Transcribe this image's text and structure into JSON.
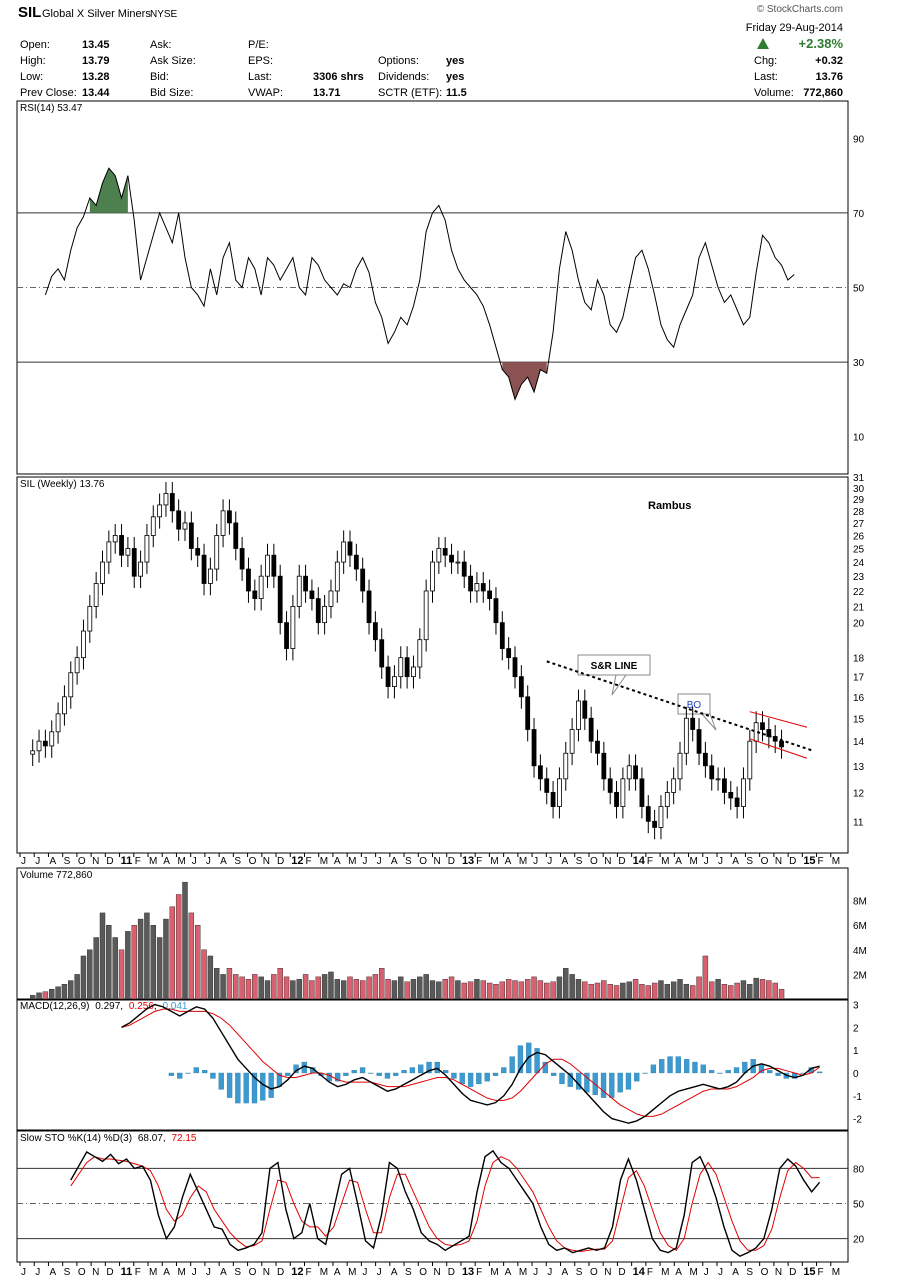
{
  "header": {
    "symbol": "SIL",
    "name": "Global X Silver Miners",
    "exchange": "NYSE",
    "watermark": "© StockCharts.com",
    "date": "Friday   29-Aug-2014",
    "change_pct": "+2.38%",
    "left_fields": [
      {
        "label": "Open:",
        "value": "13.45"
      },
      {
        "label": "High:",
        "value": "13.79"
      },
      {
        "label": "Low:",
        "value": "13.28"
      },
      {
        "label": "Prev Close:",
        "value": "13.44"
      }
    ],
    "mid_fields": [
      {
        "label": "Ask:",
        "value": ""
      },
      {
        "label": "Ask Size:",
        "value": ""
      },
      {
        "label": "Bid:",
        "value": ""
      },
      {
        "label": "Bid Size:",
        "value": ""
      }
    ],
    "mid2_fields": [
      {
        "label": "P/E:",
        "value": ""
      },
      {
        "label": "EPS:",
        "value": ""
      },
      {
        "label": "Last:",
        "value": "3306 shrs"
      },
      {
        "label": "VWAP:",
        "value": "13.71"
      }
    ],
    "right_fields": [
      {
        "label": "",
        "value": ""
      },
      {
        "label": "Options:",
        "value": "yes"
      },
      {
        "label": "Dividends:",
        "value": "yes"
      },
      {
        "label": "SCTR (ETF):",
        "value": "11.5"
      }
    ],
    "far_fields": [
      {
        "label": "Chg:",
        "value": "+0.32"
      },
      {
        "label": "Last:",
        "value": "13.76"
      },
      {
        "label": "Volume:",
        "value": "772,860"
      }
    ]
  },
  "colors": {
    "up": "#5a5a5a",
    "down": "#d9606e",
    "rsi_over": "#4e7f4e",
    "rsi_under": "#8a5252",
    "macd_hist": "#3b9ad0",
    "signal": "#e00000",
    "channel": "#e00000",
    "accent_green": "#2e7d32"
  },
  "x_axis": {
    "labels": [
      "J",
      "J",
      "A",
      "S",
      "O",
      "N",
      "D",
      "11",
      "F",
      "M",
      "A",
      "M",
      "J",
      "J",
      "A",
      "S",
      "O",
      "N",
      "D",
      "12",
      "F",
      "M",
      "A",
      "M",
      "J",
      "J",
      "A",
      "S",
      "O",
      "N",
      "D",
      "13",
      "F",
      "M",
      "A",
      "M",
      "J",
      "J",
      "A",
      "S",
      "O",
      "N",
      "D",
      "14",
      "F",
      "M",
      "A",
      "M",
      "J",
      "J",
      "A",
      "S",
      "O",
      "N",
      "D",
      "15",
      "F",
      "M"
    ]
  },
  "chart_data": [
    {
      "type": "line",
      "title": "RSI(14) 53.47",
      "x_unit": "weeks from Jun-2010",
      "ylim": [
        0,
        100
      ],
      "yticks": [
        10,
        30,
        50,
        70,
        90
      ],
      "reference_lines": [
        30,
        50,
        70
      ],
      "values": [
        48,
        53,
        55,
        52,
        60,
        66,
        69,
        74,
        72,
        78,
        82,
        80,
        74,
        80,
        68,
        52,
        58,
        64,
        70,
        66,
        62,
        70,
        58,
        50,
        48,
        45,
        55,
        48,
        58,
        62,
        52,
        50,
        58,
        55,
        48,
        58,
        56,
        52,
        55,
        58,
        50,
        48,
        58,
        56,
        52,
        50,
        48,
        51,
        50,
        55,
        58,
        54,
        46,
        42,
        35,
        38,
        42,
        40,
        45,
        52,
        65,
        70,
        72,
        68,
        60,
        55,
        52,
        50,
        48,
        45,
        40,
        34,
        28,
        26,
        20,
        24,
        26,
        22,
        28,
        27,
        38,
        55,
        65,
        60,
        52,
        46,
        44,
        52,
        48,
        40,
        38,
        42,
        50,
        58,
        60,
        55,
        48,
        40,
        36,
        34,
        40,
        44,
        48,
        58,
        62,
        56,
        50,
        46,
        48,
        44,
        40,
        42,
        54,
        64,
        62,
        58,
        56,
        52,
        53.47
      ]
    },
    {
      "type": "candlestick",
      "title": "SIL (Weekly) 13.76",
      "annotations": [
        "Rambus",
        "S&R LINE",
        "BO"
      ],
      "x_unit": "weeks from Jun-2010",
      "ylim": [
        10,
        31
      ],
      "log_scale": true,
      "yticks": [
        11,
        12,
        13,
        14,
        15,
        16,
        17,
        18,
        20,
        21,
        22,
        23,
        24,
        25,
        26,
        27,
        28,
        29,
        30,
        31
      ],
      "values": [
        13.6,
        14.0,
        13.8,
        14.4,
        15.2,
        16.0,
        17.2,
        18.0,
        19.5,
        21.0,
        22.5,
        24.0,
        25.5,
        26.0,
        24.5,
        25.0,
        23.0,
        24.0,
        26.0,
        27.5,
        28.5,
        29.5,
        28.0,
        26.5,
        27.0,
        25.0,
        24.5,
        22.5,
        23.5,
        26.0,
        28.0,
        27.0,
        25.0,
        23.5,
        22.0,
        21.5,
        23.0,
        24.5,
        23.0,
        20.0,
        18.5,
        21.0,
        23.0,
        22.0,
        21.5,
        20.0,
        21.0,
        22.0,
        24.0,
        25.5,
        24.5,
        23.5,
        22.0,
        20.0,
        19.0,
        17.5,
        16.5,
        17.0,
        18.0,
        17.0,
        17.5,
        19.0,
        22.0,
        24.0,
        25.0,
        24.5,
        24.0,
        24.0,
        23.0,
        22.0,
        22.5,
        22.0,
        21.5,
        20.0,
        18.5,
        18.0,
        17.0,
        16.0,
        14.5,
        13.0,
        12.5,
        12.0,
        11.5,
        12.5,
        13.5,
        14.5,
        15.8,
        15.0,
        14.0,
        13.5,
        12.5,
        12.0,
        11.5,
        12.5,
        13.0,
        12.5,
        11.5,
        11.0,
        10.8,
        11.5,
        12.0,
        12.5,
        13.5,
        15.0,
        14.5,
        13.5,
        13.0,
        12.5,
        12.5,
        12.0,
        11.8,
        11.5,
        12.5,
        14.0,
        14.8,
        14.5,
        14.2,
        14.0,
        13.76
      ],
      "sr_line": {
        "x": [
          83,
          125
        ],
        "y": [
          17.8,
          13.6
        ]
      },
      "channel_upper": {
        "x": [
          115,
          124
        ],
        "y": [
          15.3,
          14.6
        ]
      },
      "channel_lower": {
        "x": [
          115,
          124
        ],
        "y": [
          14.1,
          13.3
        ]
      }
    },
    {
      "type": "bar",
      "title": "Volume 772,860",
      "ylim": [
        0,
        10
      ],
      "yticks": [
        2,
        4,
        6,
        8
      ],
      "ytick_labels": [
        "2M",
        "4M",
        "6M",
        "8M"
      ],
      "values": [
        0.3,
        0.5,
        0.6,
        0.8,
        1.0,
        1.2,
        1.5,
        2.0,
        3.5,
        4.0,
        5.0,
        7.0,
        6.0,
        5.0,
        4.0,
        5.5,
        6.0,
        6.5,
        7.0,
        6.0,
        5.0,
        6.5,
        7.5,
        8.5,
        9.5,
        7.0,
        6.0,
        4.0,
        3.5,
        2.5,
        2.0,
        2.5,
        2.0,
        1.8,
        1.6,
        2.0,
        1.8,
        1.5,
        2.0,
        2.5,
        1.8,
        1.5,
        1.6,
        2.0,
        1.5,
        1.8,
        2.0,
        2.2,
        1.6,
        1.5,
        1.8,
        1.6,
        1.5,
        1.8,
        2.0,
        2.5,
        1.6,
        1.5,
        1.8,
        1.4,
        1.6,
        1.8,
        2.0,
        1.5,
        1.4,
        1.6,
        1.8,
        1.5,
        1.3,
        1.4,
        1.6,
        1.5,
        1.3,
        1.2,
        1.4,
        1.6,
        1.5,
        1.4,
        1.6,
        1.8,
        1.5,
        1.3,
        1.4,
        1.8,
        2.5,
        2.0,
        1.6,
        1.4,
        1.2,
        1.3,
        1.5,
        1.2,
        1.1,
        1.3,
        1.4,
        1.6,
        1.2,
        1.1,
        1.3,
        1.5,
        1.2,
        1.4,
        1.6,
        1.2,
        1.1,
        1.8,
        3.5,
        1.4,
        1.6,
        1.2,
        1.1,
        1.3,
        1.5,
        1.2,
        1.7,
        1.6,
        1.5,
        1.3,
        0.8
      ]
    },
    {
      "type": "line",
      "title": "MACD(12,26,9) 0.297, 0.256, 0.041",
      "legend": [
        "MACD(12,26,9)",
        "0.297",
        "0.256",
        "0.041"
      ],
      "ylim": [
        -2.5,
        3.2
      ],
      "yticks": [
        -2,
        -1,
        0,
        1,
        2,
        3
      ],
      "macd": [
        2.0,
        2.2,
        2.5,
        2.8,
        3.0,
        2.9,
        2.7,
        2.5,
        2.7,
        2.9,
        2.8,
        2.4,
        1.8,
        1.2,
        0.6,
        0.2,
        -0.2,
        -0.5,
        -0.7,
        -0.6,
        -0.3,
        0.1,
        0.3,
        0.2,
        -0.1,
        -0.4,
        -0.6,
        -0.5,
        -0.3,
        -0.2,
        -0.4,
        -0.6,
        -0.8,
        -0.7,
        -0.5,
        -0.3,
        -0.1,
        0.1,
        0.2,
        -0.1,
        -0.5,
        -0.9,
        -1.2,
        -1.3,
        -1.4,
        -1.3,
        -1.0,
        -0.5,
        0.2,
        0.7,
        0.9,
        0.8,
        0.5,
        0.2,
        -0.1,
        -0.5,
        -0.9,
        -1.3,
        -1.7,
        -2.0,
        -2.1,
        -2.2,
        -2.1,
        -1.9,
        -1.6,
        -1.3,
        -1.0,
        -0.8,
        -0.7,
        -0.6,
        -0.5,
        -0.6,
        -0.7,
        -0.6,
        -0.4,
        0.0,
        0.3,
        0.4,
        0.3,
        0.1,
        -0.1,
        -0.2,
        -0.1,
        0.2,
        0.297
      ],
      "signal": [
        2.0,
        2.1,
        2.3,
        2.5,
        2.7,
        2.8,
        2.8,
        2.7,
        2.7,
        2.7,
        2.7,
        2.6,
        2.4,
        2.1,
        1.7,
        1.3,
        0.9,
        0.5,
        0.2,
        -0.1,
        -0.2,
        -0.2,
        -0.1,
        0.0,
        0.0,
        -0.1,
        -0.3,
        -0.4,
        -0.4,
        -0.4,
        -0.4,
        -0.5,
        -0.6,
        -0.6,
        -0.6,
        -0.5,
        -0.4,
        -0.3,
        -0.2,
        -0.2,
        -0.3,
        -0.5,
        -0.7,
        -0.9,
        -1.1,
        -1.2,
        -1.2,
        -1.1,
        -0.8,
        -0.4,
        0.0,
        0.4,
        0.6,
        0.6,
        0.4,
        0.1,
        -0.2,
        -0.5,
        -0.8,
        -1.1,
        -1.4,
        -1.6,
        -1.8,
        -1.9,
        -1.9,
        -1.8,
        -1.6,
        -1.4,
        -1.2,
        -1.0,
        -0.8,
        -0.7,
        -0.7,
        -0.7,
        -0.6,
        -0.4,
        -0.2,
        0.1,
        0.2,
        0.2,
        0.1,
        0.0,
        -0.1,
        0.0,
        0.256
      ]
    },
    {
      "type": "line",
      "title": "Slow STO %K(14) %D(3) 68.07, 72.15",
      "legend": [
        "Slow STO %K(14) %D(3)",
        "68.07",
        "72.15"
      ],
      "ylim": [
        0,
        100
      ],
      "yticks": [
        20,
        50,
        80
      ],
      "reference_lines": [
        20,
        50,
        80
      ],
      "k": [
        70,
        82,
        94,
        90,
        86,
        92,
        84,
        88,
        80,
        82,
        70,
        40,
        20,
        30,
        55,
        75,
        60,
        45,
        30,
        28,
        15,
        10,
        12,
        15,
        25,
        80,
        85,
        45,
        20,
        25,
        50,
        20,
        15,
        45,
        75,
        80,
        50,
        18,
        12,
        40,
        85,
        80,
        60,
        45,
        25,
        18,
        15,
        10,
        14,
        18,
        22,
        60,
        90,
        95,
        85,
        80,
        70,
        60,
        50,
        30,
        15,
        10,
        12,
        8,
        10,
        12,
        10,
        12,
        30,
        70,
        88,
        70,
        45,
        20,
        10,
        8,
        12,
        40,
        85,
        90,
        75,
        55,
        30,
        10,
        5,
        8,
        12,
        20,
        45,
        80,
        88,
        82,
        70,
        60,
        68.07
      ],
      "d": [
        65,
        75,
        85,
        90,
        88,
        88,
        87,
        86,
        84,
        82,
        78,
        65,
        45,
        35,
        40,
        55,
        65,
        60,
        45,
        35,
        25,
        18,
        13,
        14,
        18,
        45,
        70,
        68,
        50,
        35,
        30,
        30,
        22,
        30,
        50,
        70,
        68,
        45,
        25,
        25,
        55,
        75,
        75,
        60,
        45,
        30,
        20,
        15,
        14,
        15,
        18,
        35,
        65,
        85,
        90,
        87,
        80,
        70,
        60,
        45,
        30,
        18,
        12,
        10,
        9,
        10,
        11,
        11,
        18,
        45,
        72,
        78,
        65,
        45,
        25,
        14,
        10,
        20,
        50,
        75,
        85,
        75,
        55,
        35,
        18,
        10,
        10,
        14,
        28,
        55,
        78,
        85,
        80,
        72,
        72.15
      ]
    }
  ]
}
